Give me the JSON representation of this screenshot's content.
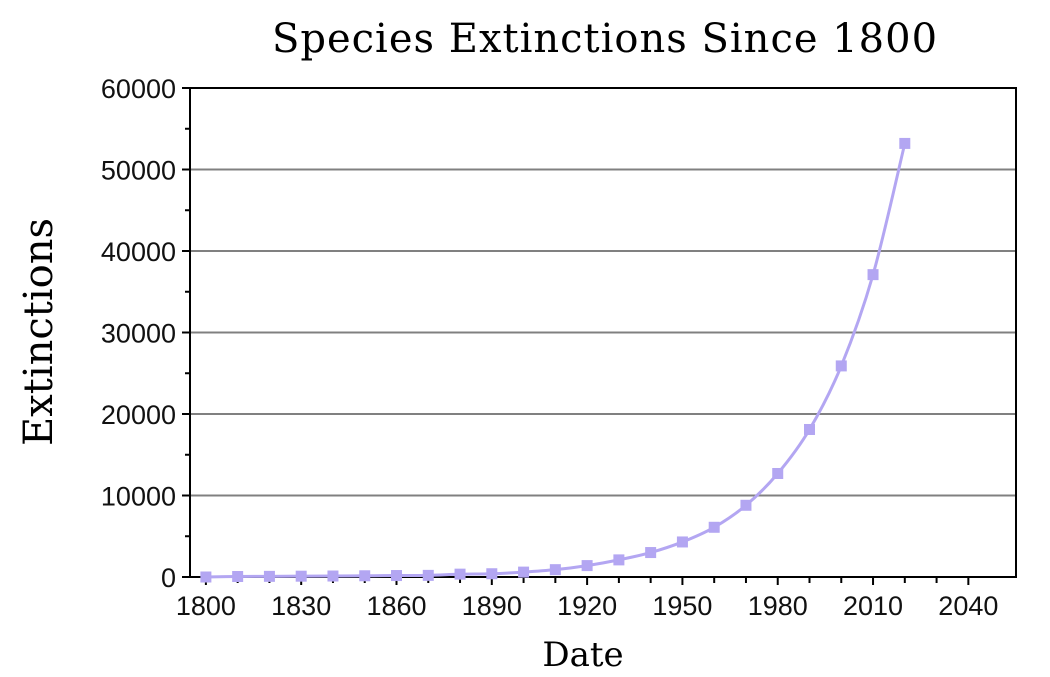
{
  "chart_data": {
    "type": "line",
    "title": "Species Extinctions Since 1800",
    "xlabel": "Date",
    "ylabel": "Extinctions",
    "xlim": [
      1795,
      2055
    ],
    "ylim": [
      0,
      60000
    ],
    "x_ticks": [
      1800,
      1830,
      1860,
      1890,
      1920,
      1950,
      1980,
      2010,
      2040
    ],
    "y_ticks": [
      0,
      10000,
      20000,
      30000,
      40000,
      50000,
      60000
    ],
    "grid": "horizontal",
    "series_color": "#b3a6f2",
    "series": [
      {
        "x": [
          1800,
          1810,
          1820,
          1830,
          1840,
          1850,
          1860,
          1870,
          1880,
          1890,
          1900,
          1910,
          1920,
          1930,
          1940,
          1950,
          1960,
          1970,
          1980,
          1990,
          2000,
          2010,
          2020
        ],
        "values": [
          0,
          60,
          80,
          100,
          120,
          150,
          180,
          200,
          350,
          400,
          600,
          900,
          1400,
          2100,
          3000,
          4300,
          6100,
          8800,
          12700,
          18100,
          25900,
          37100,
          53200
        ]
      }
    ]
  }
}
